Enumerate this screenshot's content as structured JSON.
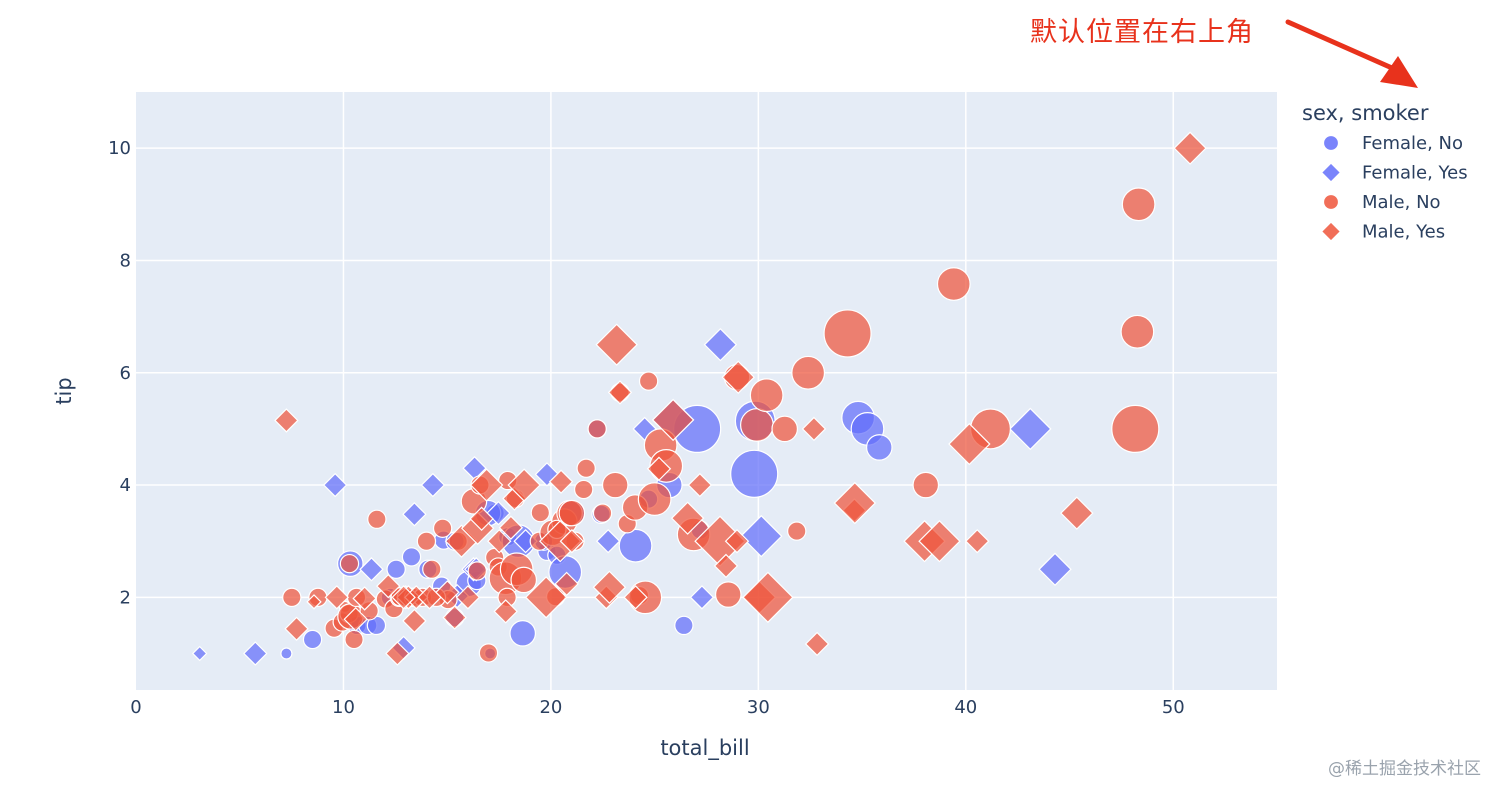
{
  "annotation": {
    "text": "默认位置在右上角",
    "color": "#e8321c"
  },
  "watermark": {
    "text": "@稀土掘金技术社区"
  },
  "chart_data": {
    "type": "scatter",
    "xlabel": "total_bill",
    "ylabel": "tip",
    "xlim": [
      0,
      55
    ],
    "ylim": [
      0.35,
      11.0
    ],
    "xticks": [
      0,
      10,
      20,
      30,
      40,
      50
    ],
    "yticks": [
      2,
      4,
      6,
      8,
      10
    ],
    "grid": true,
    "legend": {
      "title": "sex, smoker",
      "placement": "top-right-outside"
    },
    "size_by": "size",
    "colors": {
      "Female": "#636efa",
      "Male": "#ef553b",
      "plot_bg": "#e5ecf6"
    },
    "series": [
      {
        "name": "Female, No",
        "color": "#636efa",
        "symbol": "circle",
        "points": [
          [
            7.25,
            1.0,
            1
          ],
          [
            8.51,
            1.25,
            2
          ],
          [
            10.33,
            2.6,
            3
          ],
          [
            10.65,
            1.5,
            2
          ],
          [
            11.17,
            1.5,
            2
          ],
          [
            12.26,
            2.0,
            2
          ],
          [
            12.54,
            2.5,
            2
          ],
          [
            13.28,
            2.72,
            2
          ],
          [
            14.07,
            2.5,
            2
          ],
          [
            14.83,
            3.02,
            2
          ],
          [
            15.36,
            1.64,
            2
          ],
          [
            16.04,
            2.24,
            3
          ],
          [
            16.43,
            2.3,
            2
          ],
          [
            17.07,
            1.0,
            1
          ],
          [
            17.31,
            3.5,
            2
          ],
          [
            17.92,
            3.08,
            2
          ],
          [
            18.43,
            3.0,
            4
          ],
          [
            18.64,
            1.36,
            3
          ],
          [
            19.81,
            2.82,
            2
          ],
          [
            20.29,
            2.75,
            2
          ],
          [
            20.69,
            2.45,
            4
          ],
          [
            22.23,
            5.0,
            2
          ],
          [
            22.42,
            3.48,
            2
          ],
          [
            24.08,
            2.92,
            4
          ],
          [
            24.71,
            3.75,
            2
          ],
          [
            25.71,
            4.0,
            3
          ],
          [
            26.41,
            1.5,
            2
          ],
          [
            27.05,
            5.0,
            6
          ],
          [
            29.85,
            5.14,
            5
          ],
          [
            29.8,
            4.2,
            6
          ],
          [
            34.81,
            5.2,
            4
          ],
          [
            35.26,
            5.0,
            4
          ],
          [
            35.83,
            4.67,
            3
          ],
          [
            27.2,
            3.2,
            2
          ],
          [
            19.65,
            3.0,
            2
          ],
          [
            21.01,
            3.5,
            3
          ],
          [
            16.97,
            3.5,
            3
          ],
          [
            15.38,
            3.0,
            2
          ],
          [
            11.59,
            1.5,
            2
          ],
          [
            14.73,
            2.2,
            2
          ]
        ]
      },
      {
        "name": "Female, Yes",
        "color": "#636efa",
        "symbol": "diamond",
        "points": [
          [
            3.07,
            1.0,
            1
          ],
          [
            5.75,
            1.0,
            2
          ],
          [
            9.6,
            4.0,
            2
          ],
          [
            11.35,
            2.5,
            2
          ],
          [
            12.9,
            1.1,
            2
          ],
          [
            13.42,
            3.48,
            2
          ],
          [
            14.31,
            4.0,
            2
          ],
          [
            16.27,
            2.5,
            2
          ],
          [
            16.4,
            2.5,
            2
          ],
          [
            16.32,
            4.3,
            2
          ],
          [
            19.81,
            4.19,
            2
          ],
          [
            22.76,
            3.0,
            2
          ],
          [
            24.52,
            5.0,
            2
          ],
          [
            25.89,
            5.16,
            4
          ],
          [
            27.28,
            2.0,
            2
          ],
          [
            28.17,
            6.5,
            3
          ],
          [
            30.14,
            3.09,
            4
          ],
          [
            43.11,
            5.0,
            4
          ],
          [
            44.3,
            2.5,
            3
          ],
          [
            17.47,
            3.5,
            2
          ],
          [
            18.78,
            3.0,
            2
          ],
          [
            13.0,
            2.0,
            2
          ],
          [
            15.48,
            2.02,
            2
          ]
        ]
      },
      {
        "name": "Male, No",
        "color": "#ef553b",
        "symbol": "circle",
        "points": [
          [
            7.51,
            2.0,
            2
          ],
          [
            8.77,
            2.0,
            2
          ],
          [
            9.55,
            1.45,
            2
          ],
          [
            9.94,
            1.56,
            2
          ],
          [
            10.07,
            1.83,
            1
          ],
          [
            10.27,
            1.71,
            2
          ],
          [
            10.34,
            1.66,
            3
          ],
          [
            10.51,
            1.25,
            2
          ],
          [
            10.63,
            2.0,
            2
          ],
          [
            11.24,
            1.76,
            2
          ],
          [
            11.61,
            3.39,
            2
          ],
          [
            12.02,
            1.97,
            2
          ],
          [
            12.43,
            1.8,
            2
          ],
          [
            12.69,
            2.0,
            2
          ],
          [
            12.74,
            2.01,
            2
          ],
          [
            13.03,
            2.0,
            2
          ],
          [
            13.37,
            2.0,
            2
          ],
          [
            13.81,
            2.0,
            2
          ],
          [
            14.0,
            3.0,
            2
          ],
          [
            14.26,
            2.5,
            2
          ],
          [
            14.78,
            3.23,
            2
          ],
          [
            15.04,
            1.96,
            2
          ],
          [
            15.53,
            3.0,
            2
          ],
          [
            16.29,
            3.71,
            3
          ],
          [
            16.58,
            4.0,
            2
          ],
          [
            16.99,
            1.01,
            2
          ],
          [
            17.29,
            2.71,
            2
          ],
          [
            17.46,
            2.54,
            2
          ],
          [
            17.81,
            2.34,
            4
          ],
          [
            17.92,
            4.08,
            2
          ],
          [
            18.29,
            3.76,
            2
          ],
          [
            18.35,
            2.5,
            4
          ],
          [
            18.69,
            2.31,
            3
          ],
          [
            19.44,
            3.0,
            2
          ],
          [
            19.49,
            3.51,
            2
          ],
          [
            20.08,
            3.15,
            3
          ],
          [
            20.23,
            2.01,
            2
          ],
          [
            20.65,
            3.35,
            3
          ],
          [
            21.16,
            3.0,
            2
          ],
          [
            21.58,
            3.92,
            2
          ],
          [
            22.23,
            5.0,
            2
          ],
          [
            22.49,
            3.5,
            2
          ],
          [
            23.1,
            4.0,
            3
          ],
          [
            23.33,
            5.65,
            2
          ],
          [
            23.68,
            3.31,
            2
          ],
          [
            24.06,
            3.6,
            3
          ],
          [
            24.27,
            2.03,
            2
          ],
          [
            24.55,
            2.0,
            4
          ],
          [
            24.71,
            5.85,
            2
          ],
          [
            25.29,
            4.71,
            4
          ],
          [
            25.56,
            4.34,
            4
          ],
          [
            26.88,
            3.12,
            4
          ],
          [
            28.55,
            2.05,
            3
          ],
          [
            28.97,
            5.92,
            3
          ],
          [
            29.93,
            5.07,
            4
          ],
          [
            30.4,
            5.6,
            4
          ],
          [
            31.27,
            5.0,
            3
          ],
          [
            31.85,
            3.18,
            2
          ],
          [
            32.4,
            6.0,
            4
          ],
          [
            34.3,
            6.7,
            6
          ],
          [
            38.07,
            4.0,
            3
          ],
          [
            39.42,
            7.58,
            4
          ],
          [
            41.19,
            5.0,
            5
          ],
          [
            48.17,
            5.0,
            6
          ],
          [
            48.27,
            6.73,
            4
          ],
          [
            48.33,
            9.0,
            4
          ],
          [
            20.29,
            3.21,
            2
          ],
          [
            21.7,
            4.3,
            2
          ],
          [
            20.9,
            3.5,
            3
          ],
          [
            17.89,
            2.0,
            2
          ],
          [
            14.48,
            2.0,
            2
          ],
          [
            16.45,
            2.47,
            2
          ],
          [
            25.0,
            3.75,
            4
          ],
          [
            21.01,
            3.5,
            3
          ],
          [
            10.29,
            2.6,
            2
          ]
        ]
      },
      {
        "name": "Male, Yes",
        "color": "#ef553b",
        "symbol": "diamond",
        "points": [
          [
            7.25,
            5.15,
            2
          ],
          [
            7.74,
            1.44,
            2
          ],
          [
            8.58,
            1.92,
            1
          ],
          [
            10.59,
            1.61,
            2
          ],
          [
            11.02,
            1.98,
            2
          ],
          [
            12.16,
            2.2,
            2
          ],
          [
            12.6,
            1.0,
            2
          ],
          [
            13.13,
            2.0,
            2
          ],
          [
            13.42,
            1.58,
            2
          ],
          [
            13.51,
            2.0,
            2
          ],
          [
            14.15,
            2.0,
            2
          ],
          [
            15.01,
            2.09,
            2
          ],
          [
            15.36,
            1.64,
            2
          ],
          [
            15.69,
            3.0,
            3
          ],
          [
            16.0,
            2.0,
            2
          ],
          [
            16.47,
            3.23,
            3
          ],
          [
            16.66,
            3.4,
            2
          ],
          [
            16.9,
            4.0,
            3
          ],
          [
            17.51,
            3.0,
            2
          ],
          [
            17.82,
            1.75,
            2
          ],
          [
            18.24,
            3.76,
            2
          ],
          [
            18.71,
            4.0,
            3
          ],
          [
            19.77,
            2.0,
            4
          ],
          [
            20.45,
            3.0,
            4
          ],
          [
            20.49,
            4.06,
            2
          ],
          [
            20.76,
            2.24,
            2
          ],
          [
            21.01,
            3.0,
            2
          ],
          [
            22.67,
            2.0,
            2
          ],
          [
            22.82,
            2.18,
            3
          ],
          [
            23.17,
            6.5,
            4
          ],
          [
            23.33,
            5.65,
            2
          ],
          [
            24.08,
            2.0,
            2
          ],
          [
            25.21,
            4.29,
            2
          ],
          [
            26.59,
            3.41,
            3
          ],
          [
            27.18,
            4.0,
            2
          ],
          [
            28.15,
            3.0,
            5
          ],
          [
            28.44,
            2.56,
            2
          ],
          [
            29.03,
            5.92,
            3
          ],
          [
            30.06,
            2.0,
            3
          ],
          [
            30.46,
            2.0,
            5
          ],
          [
            32.68,
            5.0,
            2
          ],
          [
            32.83,
            1.17,
            2
          ],
          [
            34.63,
            3.55,
            2
          ],
          [
            34.65,
            3.68,
            4
          ],
          [
            38.01,
            3.0,
            4
          ],
          [
            38.73,
            3.0,
            4
          ],
          [
            40.17,
            4.73,
            4
          ],
          [
            40.55,
            3.0,
            2
          ],
          [
            45.35,
            3.5,
            3
          ],
          [
            50.81,
            10.0,
            3
          ],
          [
            25.89,
            5.16,
            4
          ],
          [
            28.97,
            3.0,
            2
          ],
          [
            12.9,
            2.0,
            2
          ],
          [
            9.68,
            2.0,
            2
          ],
          [
            18.07,
            3.24,
            2
          ]
        ]
      }
    ]
  }
}
